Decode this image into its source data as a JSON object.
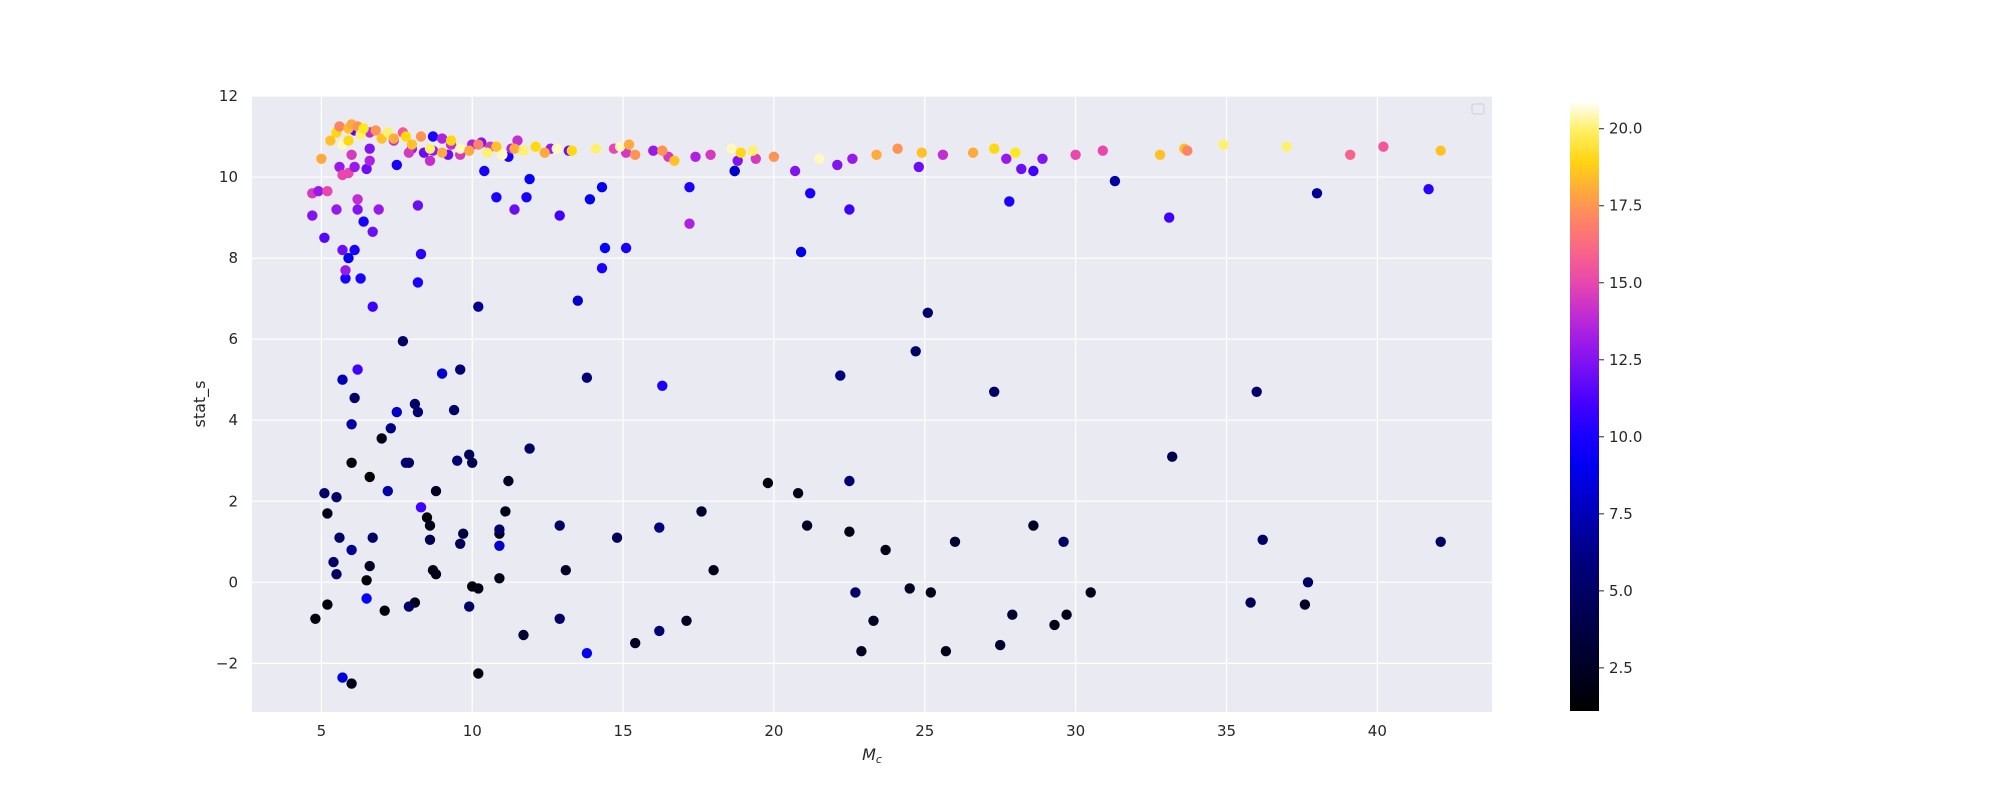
{
  "chart_data": {
    "type": "scatter",
    "title": "",
    "xlabel": "M_c",
    "ylabel": "stat_s",
    "xlim": [
      2.7,
      43.8
    ],
    "ylim": [
      -3.2,
      12
    ],
    "xticks": [
      5,
      10,
      15,
      20,
      25,
      30,
      35,
      40
    ],
    "yticks": [
      -2,
      0,
      2,
      4,
      6,
      8,
      10,
      12
    ],
    "grid": true,
    "background": "#eaeaf2",
    "colormap": "gnuplot2",
    "colorbar": {
      "range": [
        1.1,
        20.9
      ],
      "ticks": [
        2.5,
        5.0,
        7.5,
        10.0,
        12.5,
        15.0,
        17.5,
        20.0
      ],
      "tick_labels": [
        "2.5",
        "5.0",
        "7.5",
        "10.0",
        "12.5",
        "15.0",
        "17.5",
        "20.0"
      ]
    },
    "legend": "top-right (empty)",
    "points": [
      [
        4.8,
        -0.9,
        1.5
      ],
      [
        5.2,
        -0.55,
        1.5
      ],
      [
        5.2,
        1.7,
        2
      ],
      [
        6.0,
        -2.5,
        2
      ],
      [
        6.0,
        2.95,
        1.5
      ],
      [
        6.5,
        0.05,
        1.5
      ],
      [
        6.6,
        0.4,
        2.5
      ],
      [
        6.6,
        2.6,
        1.2
      ],
      [
        7.0,
        3.55,
        2
      ],
      [
        7.1,
        -0.7,
        1.5
      ],
      [
        8.1,
        -0.5,
        2
      ],
      [
        8.5,
        1.6,
        1.5
      ],
      [
        8.6,
        1.4,
        2
      ],
      [
        8.7,
        0.3,
        2
      ],
      [
        8.8,
        0.2,
        2
      ],
      [
        8.8,
        2.25,
        2.5
      ],
      [
        10.0,
        -0.1,
        1.5
      ],
      [
        10.2,
        -0.15,
        2
      ],
      [
        10.2,
        -2.25,
        1.5
      ],
      [
        10.9,
        1.2,
        2
      ],
      [
        10.9,
        0.1,
        2
      ],
      [
        11.1,
        1.75,
        2
      ],
      [
        11.2,
        2.5,
        2.5
      ],
      [
        11.7,
        -1.3,
        3
      ],
      [
        13.1,
        0.3,
        2.5
      ],
      [
        15.4,
        -1.5,
        2.5
      ],
      [
        17.1,
        -0.95,
        2.5
      ],
      [
        17.6,
        1.75,
        3
      ],
      [
        18.0,
        0.3,
        2
      ],
      [
        19.8,
        2.45,
        1.5
      ],
      [
        20.8,
        2.2,
        2
      ],
      [
        21.1,
        1.4,
        2.5
      ],
      [
        22.5,
        1.25,
        2
      ],
      [
        22.9,
        -1.7,
        2.5
      ],
      [
        23.3,
        -0.95,
        2.5
      ],
      [
        23.7,
        0.8,
        2
      ],
      [
        24.5,
        -0.15,
        2.5
      ],
      [
        25.2,
        -0.25,
        2
      ],
      [
        25.7,
        -1.7,
        2
      ],
      [
        26.0,
        1.0,
        3
      ],
      [
        27.5,
        -1.55,
        3
      ],
      [
        27.9,
        -0.8,
        3
      ],
      [
        28.6,
        1.4,
        2.5
      ],
      [
        29.3,
        -1.05,
        2
      ],
      [
        29.7,
        -0.8,
        2
      ],
      [
        30.5,
        -0.25,
        2
      ],
      [
        37.6,
        -0.55,
        2.5
      ],
      [
        5.1,
        2.2,
        5
      ],
      [
        5.5,
        2.1,
        5
      ],
      [
        5.4,
        0.5,
        5
      ],
      [
        5.5,
        0.2,
        5
      ],
      [
        5.6,
        1.1,
        5
      ],
      [
        5.7,
        5.0,
        7.5
      ],
      [
        5.7,
        -2.35,
        8.5
      ],
      [
        6.0,
        0.8,
        6.5
      ],
      [
        6.1,
        4.55,
        5
      ],
      [
        6.0,
        3.9,
        7
      ],
      [
        6.7,
        1.1,
        5
      ],
      [
        7.2,
        2.25,
        7
      ],
      [
        7.3,
        3.8,
        6
      ],
      [
        7.5,
        4.2,
        8
      ],
      [
        7.7,
        5.95,
        5
      ],
      [
        7.8,
        2.95,
        6
      ],
      [
        7.9,
        2.95,
        5
      ],
      [
        7.9,
        -0.6,
        5
      ],
      [
        8.1,
        4.4,
        5
      ],
      [
        8.2,
        4.2,
        5.5
      ],
      [
        8.6,
        1.05,
        4
      ],
      [
        9.0,
        5.15,
        8
      ],
      [
        9.4,
        4.25,
        5
      ],
      [
        9.6,
        5.25,
        5.5
      ],
      [
        9.5,
        3.0,
        5.5
      ],
      [
        9.6,
        0.95,
        4.5
      ],
      [
        9.7,
        1.2,
        3.5
      ],
      [
        9.9,
        3.15,
        4.5
      ],
      [
        9.9,
        -0.6,
        5
      ],
      [
        10.0,
        2.95,
        4
      ],
      [
        10.2,
        6.8,
        6.5
      ],
      [
        10.9,
        0.9,
        8
      ],
      [
        10.9,
        1.3,
        5
      ],
      [
        11.9,
        3.3,
        5
      ],
      [
        12.9,
        1.4,
        5
      ],
      [
        12.9,
        -0.9,
        5
      ],
      [
        13.8,
        5.05,
        5.5
      ],
      [
        14.8,
        1.1,
        4.5
      ],
      [
        16.2,
        1.35,
        6
      ],
      [
        16.2,
        -1.2,
        5.5
      ],
      [
        22.2,
        5.1,
        6
      ],
      [
        22.5,
        2.5,
        5.5
      ],
      [
        22.7,
        -0.25,
        5
      ],
      [
        24.7,
        5.7,
        5
      ],
      [
        25.1,
        6.65,
        5
      ],
      [
        27.3,
        4.7,
        5
      ],
      [
        29.6,
        1.0,
        5
      ],
      [
        33.2,
        3.1,
        4
      ],
      [
        35.8,
        -0.5,
        4.5
      ],
      [
        36.0,
        4.7,
        5
      ],
      [
        36.2,
        1.05,
        5
      ],
      [
        37.7,
        0.0,
        5
      ],
      [
        42.1,
        1.0,
        5
      ],
      [
        6.5,
        -0.4,
        9.5
      ],
      [
        8.3,
        1.85,
        11
      ],
      [
        13.8,
        -1.75,
        9
      ],
      [
        16.3,
        4.85,
        10
      ],
      [
        6.2,
        5.25,
        11
      ],
      [
        5.9,
        8.0,
        9
      ],
      [
        5.8,
        7.5,
        10
      ],
      [
        6.3,
        7.5,
        10
      ],
      [
        6.1,
        8.2,
        10
      ],
      [
        6.4,
        8.9,
        10
      ],
      [
        6.7,
        6.8,
        11
      ],
      [
        8.2,
        7.4,
        10
      ],
      [
        8.3,
        8.1,
        10.5
      ],
      [
        10.4,
        10.15,
        10
      ],
      [
        10.8,
        9.5,
        10
      ],
      [
        11.8,
        9.5,
        10
      ],
      [
        11.9,
        9.95,
        9.5
      ],
      [
        13.5,
        6.95,
        8
      ],
      [
        13.9,
        9.45,
        9
      ],
      [
        14.3,
        9.75,
        9
      ],
      [
        14.4,
        8.25,
        9.5
      ],
      [
        14.3,
        7.75,
        10
      ],
      [
        15.1,
        8.25,
        10
      ],
      [
        17.2,
        9.75,
        10
      ],
      [
        18.7,
        10.15,
        8
      ],
      [
        20.9,
        8.15,
        9
      ],
      [
        21.2,
        9.6,
        10
      ],
      [
        22.5,
        9.2,
        11
      ],
      [
        27.8,
        9.4,
        10
      ],
      [
        28.6,
        10.15,
        11
      ],
      [
        31.3,
        9.9,
        7
      ],
      [
        33.1,
        9.0,
        11
      ],
      [
        38.0,
        9.6,
        6.5
      ],
      [
        41.7,
        9.7,
        10.5
      ],
      [
        7.5,
        10.3,
        10
      ],
      [
        8.7,
        11.0,
        10
      ],
      [
        11.2,
        10.5,
        10
      ],
      [
        18.7,
        10.15,
        8
      ],
      [
        4.7,
        9.05,
        12.5
      ],
      [
        4.7,
        9.6,
        14.5
      ],
      [
        4.9,
        9.65,
        13
      ],
      [
        5.1,
        8.5,
        11.5
      ],
      [
        5.2,
        9.65,
        15
      ],
      [
        5.5,
        9.2,
        13
      ],
      [
        5.6,
        10.25,
        13
      ],
      [
        5.7,
        8.2,
        12
      ],
      [
        5.8,
        7.7,
        13
      ],
      [
        5.7,
        10.05,
        15
      ],
      [
        5.9,
        10.1,
        15
      ],
      [
        6.0,
        10.55,
        14.5
      ],
      [
        6.1,
        10.25,
        13
      ],
      [
        6.2,
        9.45,
        14
      ],
      [
        6.2,
        9.2,
        12.5
      ],
      [
        6.5,
        10.2,
        12
      ],
      [
        6.6,
        10.4,
        13.5
      ],
      [
        6.7,
        8.65,
        12
      ],
      [
        6.9,
        9.2,
        13
      ],
      [
        6.6,
        10.7,
        12.5
      ],
      [
        7.4,
        10.9,
        14
      ],
      [
        7.7,
        11.1,
        15.5
      ],
      [
        8.0,
        10.7,
        13
      ],
      [
        8.2,
        9.3,
        12
      ],
      [
        8.4,
        10.6,
        12
      ],
      [
        8.6,
        10.4,
        14
      ],
      [
        8.7,
        10.65,
        13
      ],
      [
        9.0,
        10.95,
        13.5
      ],
      [
        9.3,
        10.8,
        14
      ],
      [
        9.6,
        10.55,
        14.5
      ],
      [
        10.0,
        10.8,
        13.5
      ],
      [
        10.3,
        10.85,
        12.5
      ],
      [
        10.6,
        10.75,
        14.5
      ],
      [
        11.3,
        10.7,
        13.5
      ],
      [
        11.4,
        9.2,
        12
      ],
      [
        11.5,
        10.9,
        14
      ],
      [
        12.6,
        10.7,
        13
      ],
      [
        12.9,
        9.05,
        11
      ],
      [
        13.2,
        10.65,
        12
      ],
      [
        14.7,
        10.7,
        15
      ],
      [
        15.1,
        10.6,
        14.5
      ],
      [
        16.0,
        10.65,
        13
      ],
      [
        16.5,
        10.5,
        14.5
      ],
      [
        17.2,
        8.85,
        13.5
      ],
      [
        17.4,
        10.5,
        13.5
      ],
      [
        17.9,
        10.55,
        14.5
      ],
      [
        18.8,
        10.4,
        12.5
      ],
      [
        19.4,
        10.45,
        14.5
      ],
      [
        20.7,
        10.15,
        12.5
      ],
      [
        22.1,
        10.3,
        12.5
      ],
      [
        22.6,
        10.45,
        13
      ],
      [
        24.8,
        10.25,
        12
      ],
      [
        25.6,
        10.55,
        14
      ],
      [
        27.7,
        10.45,
        13
      ],
      [
        28.2,
        10.2,
        12
      ],
      [
        28.9,
        10.45,
        12.5
      ],
      [
        30.0,
        10.55,
        15
      ],
      [
        30.9,
        10.65,
        15
      ],
      [
        39.1,
        10.55,
        16
      ],
      [
        40.2,
        10.75,
        15.5
      ],
      [
        6.1,
        11.15,
        11.5
      ],
      [
        6.6,
        11.1,
        14
      ],
      [
        7.9,
        10.6,
        14.5
      ],
      [
        9.2,
        10.55,
        12
      ],
      [
        5.0,
        10.45,
        18
      ],
      [
        5.3,
        10.9,
        18.5
      ],
      [
        5.5,
        11.1,
        19
      ],
      [
        5.6,
        11.25,
        17
      ],
      [
        5.7,
        10.8,
        20.5
      ],
      [
        5.9,
        11.2,
        18.5
      ],
      [
        5.9,
        10.9,
        19
      ],
      [
        6.0,
        11.3,
        18
      ],
      [
        6.2,
        11.25,
        17.5
      ],
      [
        6.3,
        11.05,
        20
      ],
      [
        6.4,
        11.2,
        19.5
      ],
      [
        6.8,
        11.15,
        17.5
      ],
      [
        7.0,
        10.95,
        18.5
      ],
      [
        7.2,
        11.1,
        20
      ],
      [
        7.4,
        10.95,
        18
      ],
      [
        7.8,
        11.0,
        19
      ],
      [
        8.0,
        10.8,
        18.5
      ],
      [
        8.3,
        11.0,
        17.5
      ],
      [
        8.6,
        10.7,
        20
      ],
      [
        9.0,
        10.6,
        18
      ],
      [
        9.3,
        10.9,
        19
      ],
      [
        9.6,
        10.7,
        20.5
      ],
      [
        9.9,
        10.65,
        18
      ],
      [
        10.2,
        10.8,
        17
      ],
      [
        10.5,
        10.6,
        20
      ],
      [
        10.8,
        10.75,
        18.5
      ],
      [
        11.0,
        10.55,
        20.5
      ],
      [
        11.4,
        10.7,
        18
      ],
      [
        11.7,
        10.65,
        20
      ],
      [
        12.1,
        10.75,
        19
      ],
      [
        12.4,
        10.6,
        18
      ],
      [
        12.8,
        10.7,
        20.5
      ],
      [
        13.3,
        10.65,
        19
      ],
      [
        14.1,
        10.7,
        20
      ],
      [
        14.9,
        10.75,
        20.5
      ],
      [
        15.2,
        10.8,
        18
      ],
      [
        15.4,
        10.55,
        17.5
      ],
      [
        16.3,
        10.65,
        17.5
      ],
      [
        16.7,
        10.4,
        18.5
      ],
      [
        18.6,
        10.7,
        20.5
      ],
      [
        18.9,
        10.6,
        19
      ],
      [
        19.3,
        10.65,
        20
      ],
      [
        20.0,
        10.5,
        17.5
      ],
      [
        21.5,
        10.45,
        20.5
      ],
      [
        23.4,
        10.55,
        18
      ],
      [
        24.1,
        10.7,
        17.5
      ],
      [
        24.9,
        10.6,
        18.5
      ],
      [
        26.6,
        10.6,
        18
      ],
      [
        27.3,
        10.7,
        19
      ],
      [
        28.0,
        10.6,
        19.5
      ],
      [
        32.8,
        10.55,
        18.5
      ],
      [
        33.6,
        10.7,
        18.5
      ],
      [
        34.9,
        10.8,
        20
      ],
      [
        37.0,
        10.75,
        20
      ],
      [
        42.1,
        10.65,
        18.5
      ],
      [
        33.7,
        10.65,
        17
      ]
    ]
  }
}
